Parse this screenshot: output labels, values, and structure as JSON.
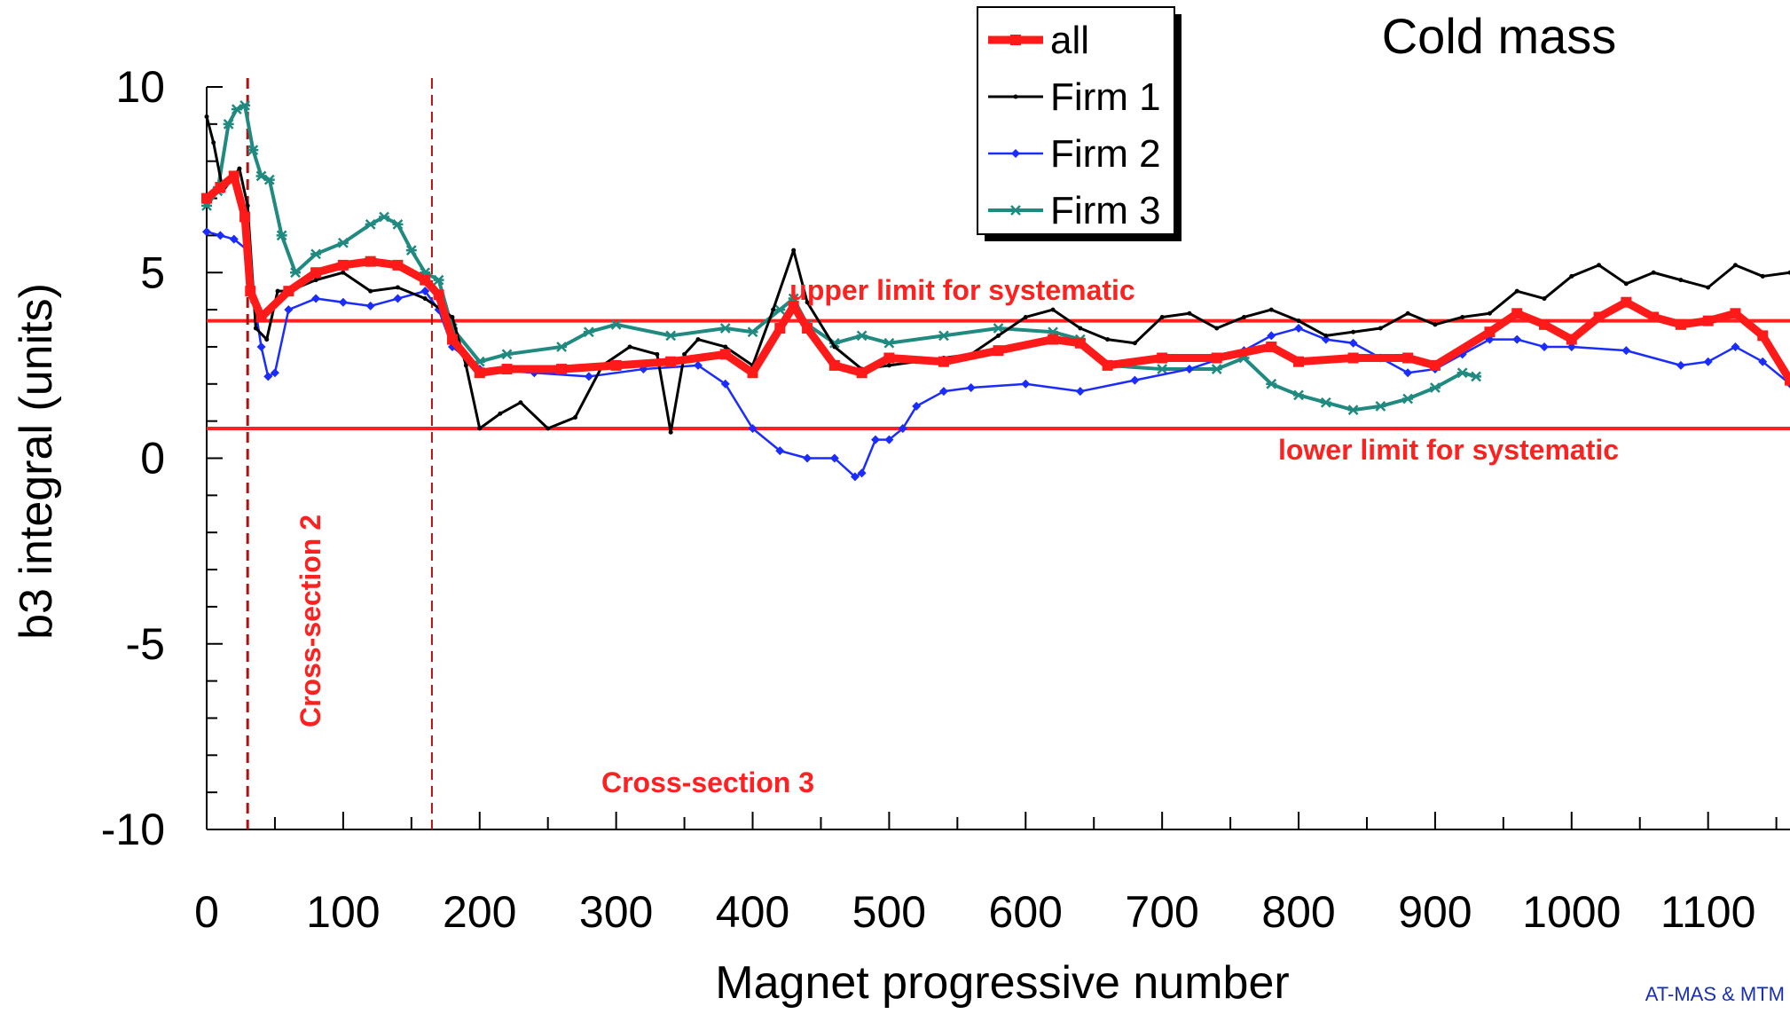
{
  "chart_data": {
    "type": "line",
    "title": "Cold mass",
    "xlabel": "Magnet progressive number",
    "ylabel": "b3 integral (units)",
    "xlim": [
      0,
      1160
    ],
    "ylim": [
      -10,
      10
    ],
    "x_ticks": [
      "0",
      "100",
      "200",
      "300",
      "400",
      "500",
      "600",
      "700",
      "800",
      "900",
      "1000",
      "1100"
    ],
    "y_ticks": [
      "10",
      "5",
      "0",
      "-5",
      "-10"
    ],
    "legend_position": "top-center",
    "reference_lines": [
      {
        "label": "upper limit for systematic",
        "y": 3.7,
        "color": "#ff2020"
      },
      {
        "label": "lower limit for systematic",
        "y": 0.8,
        "color": "#ff2020"
      }
    ],
    "cross_sections": [
      {
        "label": "Cross-section 2",
        "x": 30
      },
      {
        "label": "Cross-section 3",
        "x": 165
      }
    ],
    "series": [
      {
        "name": "all",
        "color": "#ff1a1a",
        "marker": "square",
        "x": [
          0,
          10,
          20,
          28,
          32,
          40,
          60,
          80,
          100,
          120,
          140,
          160,
          170,
          180,
          200,
          220,
          260,
          300,
          340,
          380,
          400,
          420,
          430,
          440,
          460,
          480,
          500,
          540,
          580,
          620,
          640,
          660,
          700,
          740,
          780,
          800,
          840,
          880,
          900,
          940,
          960,
          980,
          1000,
          1020,
          1040,
          1060,
          1080,
          1100,
          1120,
          1140,
          1160
        ],
        "y": [
          7.0,
          7.3,
          7.6,
          6.5,
          4.5,
          3.8,
          4.5,
          5.0,
          5.2,
          5.3,
          5.2,
          4.8,
          4.4,
          3.2,
          2.3,
          2.4,
          2.4,
          2.5,
          2.6,
          2.8,
          2.3,
          3.5,
          4.1,
          3.5,
          2.5,
          2.3,
          2.7,
          2.6,
          2.9,
          3.2,
          3.1,
          2.5,
          2.7,
          2.7,
          3.0,
          2.6,
          2.7,
          2.7,
          2.5,
          3.4,
          3.9,
          3.6,
          3.2,
          3.8,
          4.2,
          3.8,
          3.6,
          3.7,
          3.9,
          3.3,
          2.1
        ]
      },
      {
        "name": "Firm 1",
        "color": "#000000",
        "marker": "dot",
        "x": [
          0,
          5,
          12,
          18,
          24,
          30,
          36,
          44,
          52,
          60,
          80,
          100,
          120,
          140,
          160,
          180,
          190,
          200,
          215,
          230,
          250,
          270,
          290,
          310,
          330,
          340,
          350,
          360,
          380,
          400,
          415,
          430,
          440,
          460,
          480,
          500,
          520,
          540,
          560,
          580,
          600,
          620,
          640,
          660,
          680,
          700,
          720,
          740,
          760,
          780,
          800,
          820,
          840,
          860,
          880,
          900,
          920,
          940,
          960,
          980,
          1000,
          1020,
          1040,
          1060,
          1080,
          1100,
          1120,
          1140,
          1160
        ],
        "y": [
          9.2,
          8.5,
          7.2,
          7.5,
          7.8,
          6.8,
          3.5,
          3.2,
          4.5,
          4.5,
          4.8,
          5.0,
          4.5,
          4.6,
          4.3,
          3.8,
          2.5,
          0.8,
          1.2,
          1.5,
          0.8,
          1.1,
          2.5,
          3.0,
          2.8,
          0.7,
          2.8,
          3.2,
          3.0,
          2.5,
          4.0,
          5.6,
          4.2,
          3.0,
          2.4,
          2.5,
          2.6,
          2.7,
          2.8,
          3.3,
          3.8,
          4.0,
          3.5,
          3.2,
          3.1,
          3.8,
          3.9,
          3.5,
          3.8,
          4.0,
          3.7,
          3.3,
          3.4,
          3.5,
          3.9,
          3.6,
          3.8,
          3.9,
          4.5,
          4.3,
          4.9,
          5.2,
          4.7,
          5.0,
          4.8,
          4.6,
          5.2,
          4.9,
          5.0
        ]
      },
      {
        "name": "Firm 2",
        "color": "#1a2cff",
        "marker": "diamond",
        "x": [
          0,
          10,
          20,
          30,
          35,
          40,
          45,
          50,
          60,
          80,
          100,
          120,
          140,
          160,
          170,
          180,
          200,
          240,
          280,
          320,
          360,
          380,
          400,
          420,
          440,
          460,
          475,
          480,
          490,
          500,
          510,
          520,
          540,
          560,
          600,
          640,
          680,
          720,
          760,
          780,
          800,
          820,
          840,
          860,
          880,
          900,
          920,
          940,
          960,
          980,
          1000,
          1040,
          1080,
          1100,
          1120,
          1140,
          1160
        ],
        "y": [
          6.1,
          6.0,
          5.9,
          5.6,
          4.2,
          3.0,
          2.2,
          2.3,
          4.0,
          4.3,
          4.2,
          4.1,
          4.3,
          4.5,
          4.0,
          3.0,
          2.4,
          2.3,
          2.2,
          2.4,
          2.5,
          2.0,
          0.8,
          0.2,
          0.0,
          0.0,
          -0.5,
          -0.4,
          0.5,
          0.5,
          0.8,
          1.4,
          1.8,
          1.9,
          2.0,
          1.8,
          2.1,
          2.4,
          2.9,
          3.3,
          3.5,
          3.2,
          3.1,
          2.7,
          2.3,
          2.4,
          2.8,
          3.2,
          3.2,
          3.0,
          3.0,
          2.9,
          2.5,
          2.6,
          3.0,
          2.6,
          2.0
        ]
      },
      {
        "name": "Firm 3",
        "color": "#208a80",
        "marker": "star",
        "x": [
          0,
          8,
          16,
          22,
          28,
          34,
          40,
          46,
          55,
          65,
          80,
          100,
          120,
          130,
          140,
          150,
          160,
          170,
          180,
          200,
          220,
          260,
          280,
          300,
          340,
          380,
          400,
          420,
          430,
          440,
          460,
          480,
          500,
          540,
          580,
          620,
          640,
          660,
          700,
          740,
          760,
          780,
          800,
          820,
          840,
          860,
          880,
          900,
          920,
          930
        ],
        "y": [
          6.8,
          7.2,
          9.0,
          9.4,
          9.5,
          8.3,
          7.6,
          7.5,
          6.0,
          5.0,
          5.5,
          5.8,
          6.3,
          6.5,
          6.3,
          5.6,
          5.0,
          4.8,
          3.5,
          2.6,
          2.8,
          3.0,
          3.4,
          3.6,
          3.3,
          3.5,
          3.4,
          4.0,
          4.3,
          3.6,
          3.1,
          3.3,
          3.1,
          3.3,
          3.5,
          3.4,
          3.2,
          2.5,
          2.4,
          2.4,
          2.7,
          2.0,
          1.7,
          1.5,
          1.3,
          1.4,
          1.6,
          1.9,
          2.3,
          2.2
        ]
      }
    ],
    "annotation_upper": "upper limit for systematic",
    "annotation_lower": "lower limit for systematic",
    "annotation_cs2": "Cross-section 2",
    "annotation_cs3": "Cross-section 3",
    "credit": "AT-MAS & MTM"
  }
}
